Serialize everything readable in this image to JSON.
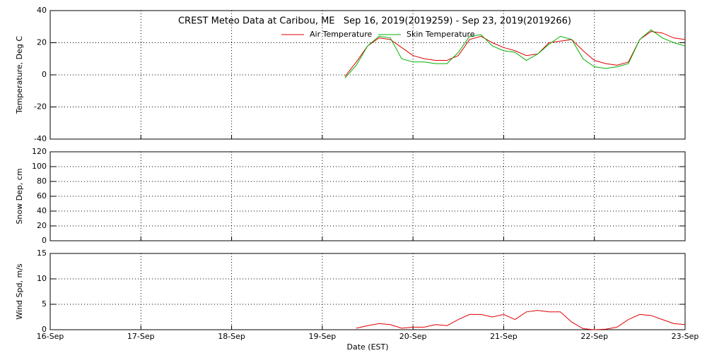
{
  "chart_data": [
    {
      "type": "line",
      "title": "CREST Meteo Data at Caribou, ME   Sep 16, 2019(2019259) - Sep 23, 2019(2019266)",
      "ylabel": "Temperature, Deg C",
      "xlim": [
        259,
        266
      ],
      "ylim": [
        -40,
        40
      ],
      "yticks": [
        -40,
        -20,
        0,
        20,
        40
      ],
      "grid": true,
      "x": [
        262.25,
        262.375,
        262.5,
        262.625,
        262.75,
        262.875,
        263,
        263.125,
        263.25,
        263.375,
        263.5,
        263.625,
        263.75,
        263.875,
        264,
        264.125,
        264.25,
        264.375,
        264.5,
        264.625,
        264.75,
        264.875,
        265,
        265.125,
        265.25,
        265.375,
        265.5,
        265.625,
        265.75,
        265.875,
        266
      ],
      "series": [
        {
          "name": "Air Temperature",
          "color": "#e00000",
          "values": [
            -1,
            8,
            18,
            23,
            22,
            17,
            12,
            10,
            9,
            9,
            12,
            22,
            24,
            20,
            17,
            15,
            12,
            13,
            20,
            21,
            22,
            15,
            9,
            7,
            6,
            8,
            22,
            27,
            26,
            23,
            22
          ]
        },
        {
          "name": "Skin Temperature",
          "color": "#00b000",
          "values": [
            -2,
            6,
            18,
            24,
            23,
            10,
            8,
            8,
            7,
            7,
            14,
            24,
            25,
            18,
            15,
            14,
            9,
            13,
            19,
            24,
            22,
            10,
            5,
            4,
            5,
            7,
            22,
            28,
            23,
            20,
            18
          ]
        }
      ]
    },
    {
      "type": "line",
      "ylabel": "Snow Dep, cm",
      "xlim": [
        259,
        266
      ],
      "ylim": [
        0,
        120
      ],
      "yticks": [
        0,
        20,
        40,
        60,
        80,
        100,
        120
      ],
      "grid": true,
      "series": []
    },
    {
      "type": "line",
      "ylabel": "Wind Spd, m/s",
      "xlabel": "Date (EST)",
      "xlim": [
        259,
        266
      ],
      "ylim": [
        0,
        15
      ],
      "yticks": [
        0,
        5,
        10,
        15
      ],
      "grid": true,
      "xticks": [
        {
          "value": 259,
          "label": "16-Sep"
        },
        {
          "value": 260,
          "label": "17-Sep"
        },
        {
          "value": 261,
          "label": "18-Sep"
        },
        {
          "value": 262,
          "label": "19-Sep"
        },
        {
          "value": 263,
          "label": "20-Sep"
        },
        {
          "value": 264,
          "label": "21-Sep"
        },
        {
          "value": 265,
          "label": "22-Sep"
        },
        {
          "value": 266,
          "label": "23-Sep"
        }
      ],
      "x": [
        262.375,
        262.5,
        262.625,
        262.75,
        262.875,
        263,
        263.125,
        263.25,
        263.375,
        263.5,
        263.625,
        263.75,
        263.875,
        264,
        264.125,
        264.25,
        264.375,
        264.5,
        264.625,
        264.75,
        264.875,
        265,
        265.125,
        265.25,
        265.375,
        265.5,
        265.625,
        265.75,
        265.875,
        266
      ],
      "series": [
        {
          "color": "#e00000",
          "values": [
            0.3,
            0.8,
            1.2,
            1.0,
            0.3,
            0.5,
            0.5,
            1.0,
            0.8,
            2.0,
            3.0,
            3.0,
            2.5,
            3.0,
            2.0,
            3.5,
            3.8,
            3.5,
            3.5,
            1.5,
            0.2,
            0,
            0.1,
            0.5,
            2.0,
            3.0,
            2.8,
            2.0,
            1.2,
            1.0
          ]
        }
      ]
    }
  ]
}
